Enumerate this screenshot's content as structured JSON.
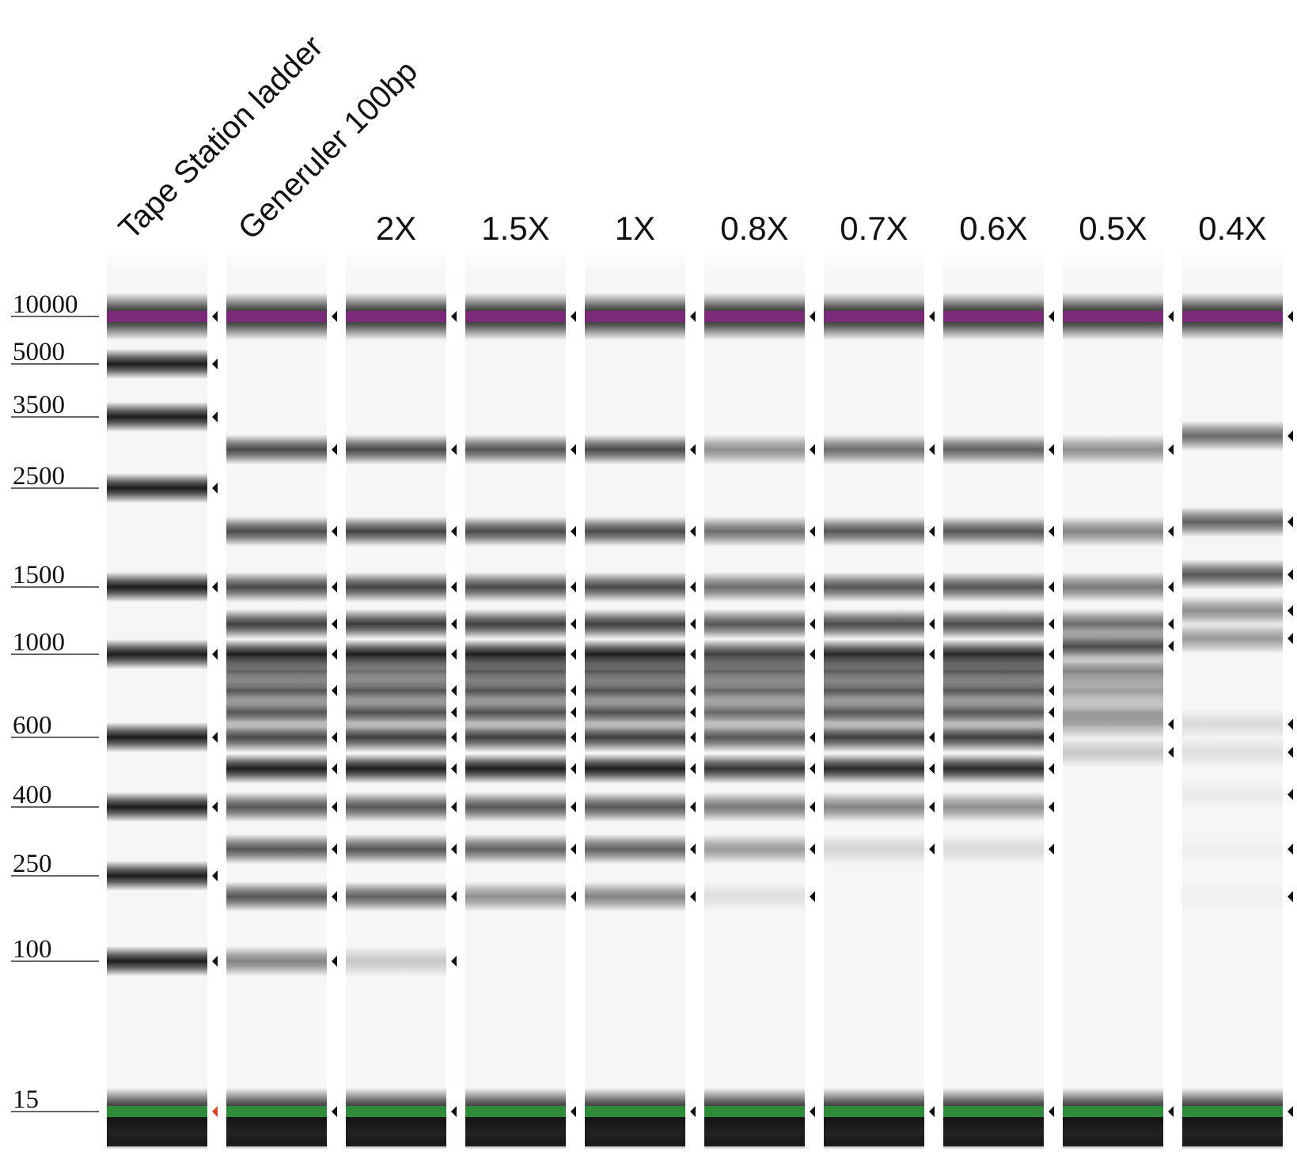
{
  "figure": {
    "size_marker_labels": [
      "10000",
      "5000",
      "3500",
      "2500",
      "1500",
      "1000",
      "600",
      "400",
      "250",
      "100",
      "15"
    ],
    "lanes": [
      {
        "label": "Tape Station ladder",
        "rotated": true,
        "bands": [
          {
            "bp": 10000,
            "i": 0.95,
            "kind": "upper",
            "mark": true
          },
          {
            "bp": 5000,
            "i": 0.95,
            "mark": true
          },
          {
            "bp": 3500,
            "i": 0.95,
            "mark": true
          },
          {
            "bp": 2500,
            "i": 0.95,
            "mark": true
          },
          {
            "bp": 1500,
            "i": 0.95,
            "mark": true
          },
          {
            "bp": 1000,
            "i": 0.95,
            "mark": true
          },
          {
            "bp": 600,
            "i": 0.95,
            "mark": true
          },
          {
            "bp": 400,
            "i": 0.95,
            "mark": true
          },
          {
            "bp": 250,
            "i": 0.95,
            "mark": true
          },
          {
            "bp": 100,
            "i": 0.95,
            "mark": true
          },
          {
            "bp": 15,
            "i": 0.95,
            "kind": "lower",
            "mark": true
          }
        ]
      },
      {
        "label": "Generuler 100bp",
        "rotated": true,
        "bands": [
          {
            "bp": 10000,
            "i": 0.95,
            "kind": "upper",
            "mark": true
          },
          {
            "bp": 3000,
            "i": 0.75,
            "mark": true
          },
          {
            "bp": 2000,
            "i": 0.75,
            "mark": true
          },
          {
            "bp": 1500,
            "i": 0.75,
            "mark": true
          },
          {
            "bp": 1200,
            "i": 0.8,
            "mark": true
          },
          {
            "bp": 1000,
            "i": 0.95,
            "mark": true
          },
          {
            "bp": 900,
            "i": 0.65,
            "mark": false
          },
          {
            "bp": 800,
            "i": 0.7,
            "mark": true
          },
          {
            "bp": 700,
            "i": 0.7,
            "mark": false
          },
          {
            "bp": 600,
            "i": 0.75,
            "mark": true
          },
          {
            "bp": 500,
            "i": 0.95,
            "mark": true
          },
          {
            "bp": 400,
            "i": 0.7,
            "mark": true
          },
          {
            "bp": 300,
            "i": 0.7,
            "mark": true
          },
          {
            "bp": 200,
            "i": 0.7,
            "mark": true
          },
          {
            "bp": 100,
            "i": 0.5,
            "mark": true
          },
          {
            "bp": 15,
            "i": 0.95,
            "kind": "lower",
            "mark": true
          }
        ]
      },
      {
        "label": "2X",
        "rotated": false,
        "bands": [
          {
            "bp": 10000,
            "i": 0.95,
            "kind": "upper",
            "mark": true
          },
          {
            "bp": 3000,
            "i": 0.75,
            "mark": true
          },
          {
            "bp": 2000,
            "i": 0.78,
            "mark": true
          },
          {
            "bp": 1500,
            "i": 0.78,
            "mark": true
          },
          {
            "bp": 1200,
            "i": 0.82,
            "mark": true
          },
          {
            "bp": 1000,
            "i": 0.95,
            "mark": true
          },
          {
            "bp": 900,
            "i": 0.6,
            "mark": false
          },
          {
            "bp": 800,
            "i": 0.7,
            "mark": true
          },
          {
            "bp": 700,
            "i": 0.72,
            "mark": true
          },
          {
            "bp": 600,
            "i": 0.8,
            "mark": true
          },
          {
            "bp": 500,
            "i": 0.95,
            "mark": true
          },
          {
            "bp": 400,
            "i": 0.7,
            "mark": true
          },
          {
            "bp": 300,
            "i": 0.7,
            "mark": true
          },
          {
            "bp": 200,
            "i": 0.65,
            "mark": true
          },
          {
            "bp": 100,
            "i": 0.2,
            "mark": true
          },
          {
            "bp": 15,
            "i": 0.95,
            "kind": "lower",
            "mark": true
          }
        ]
      },
      {
        "label": "1.5X",
        "rotated": false,
        "bands": [
          {
            "bp": 10000,
            "i": 0.95,
            "kind": "upper",
            "mark": true
          },
          {
            "bp": 3000,
            "i": 0.7,
            "mark": true
          },
          {
            "bp": 2000,
            "i": 0.75,
            "mark": true
          },
          {
            "bp": 1500,
            "i": 0.75,
            "mark": true
          },
          {
            "bp": 1200,
            "i": 0.8,
            "mark": true
          },
          {
            "bp": 1000,
            "i": 0.95,
            "mark": true
          },
          {
            "bp": 900,
            "i": 0.7,
            "mark": false
          },
          {
            "bp": 800,
            "i": 0.72,
            "mark": true
          },
          {
            "bp": 700,
            "i": 0.72,
            "mark": true
          },
          {
            "bp": 600,
            "i": 0.8,
            "mark": true
          },
          {
            "bp": 500,
            "i": 0.95,
            "mark": true
          },
          {
            "bp": 400,
            "i": 0.7,
            "mark": true
          },
          {
            "bp": 300,
            "i": 0.65,
            "mark": true
          },
          {
            "bp": 200,
            "i": 0.45,
            "mark": true
          },
          {
            "bp": 15,
            "i": 0.95,
            "kind": "lower",
            "mark": true
          }
        ]
      },
      {
        "label": "1X",
        "rotated": false,
        "bands": [
          {
            "bp": 10000,
            "i": 0.95,
            "kind": "upper",
            "mark": true
          },
          {
            "bp": 3000,
            "i": 0.75,
            "mark": true
          },
          {
            "bp": 2000,
            "i": 0.75,
            "mark": true
          },
          {
            "bp": 1500,
            "i": 0.75,
            "mark": true
          },
          {
            "bp": 1200,
            "i": 0.8,
            "mark": true
          },
          {
            "bp": 1000,
            "i": 0.95,
            "mark": true
          },
          {
            "bp": 900,
            "i": 0.7,
            "mark": false
          },
          {
            "bp": 800,
            "i": 0.72,
            "mark": true
          },
          {
            "bp": 700,
            "i": 0.72,
            "mark": true
          },
          {
            "bp": 600,
            "i": 0.8,
            "mark": true
          },
          {
            "bp": 500,
            "i": 0.95,
            "mark": true
          },
          {
            "bp": 400,
            "i": 0.7,
            "mark": true
          },
          {
            "bp": 300,
            "i": 0.65,
            "mark": true
          },
          {
            "bp": 200,
            "i": 0.5,
            "mark": true
          },
          {
            "bp": 15,
            "i": 0.95,
            "kind": "lower",
            "mark": true
          }
        ]
      },
      {
        "label": "0.8X",
        "rotated": false,
        "bands": [
          {
            "bp": 10000,
            "i": 0.95,
            "kind": "upper",
            "mark": true
          },
          {
            "bp": 3000,
            "i": 0.45,
            "mark": true
          },
          {
            "bp": 2000,
            "i": 0.6,
            "mark": true
          },
          {
            "bp": 1500,
            "i": 0.6,
            "mark": true
          },
          {
            "bp": 1200,
            "i": 0.7,
            "mark": true
          },
          {
            "bp": 1000,
            "i": 0.8,
            "mark": true
          },
          {
            "bp": 900,
            "i": 0.65,
            "mark": false
          },
          {
            "bp": 800,
            "i": 0.62,
            "mark": false
          },
          {
            "bp": 700,
            "i": 0.62,
            "mark": false
          },
          {
            "bp": 600,
            "i": 0.7,
            "mark": true
          },
          {
            "bp": 500,
            "i": 0.85,
            "mark": true
          },
          {
            "bp": 400,
            "i": 0.55,
            "mark": true
          },
          {
            "bp": 300,
            "i": 0.4,
            "mark": true
          },
          {
            "bp": 200,
            "i": 0.1,
            "mark": true
          },
          {
            "bp": 15,
            "i": 0.95,
            "kind": "lower",
            "mark": true
          }
        ]
      },
      {
        "label": "0.7X",
        "rotated": false,
        "bands": [
          {
            "bp": 10000,
            "i": 0.95,
            "kind": "upper",
            "mark": true
          },
          {
            "bp": 3000,
            "i": 0.6,
            "mark": true
          },
          {
            "bp": 2000,
            "i": 0.7,
            "mark": true
          },
          {
            "bp": 1500,
            "i": 0.7,
            "mark": true
          },
          {
            "bp": 1200,
            "i": 0.75,
            "mark": true
          },
          {
            "bp": 1000,
            "i": 0.9,
            "mark": true
          },
          {
            "bp": 900,
            "i": 0.68,
            "mark": false
          },
          {
            "bp": 800,
            "i": 0.7,
            "mark": false
          },
          {
            "bp": 700,
            "i": 0.7,
            "mark": false
          },
          {
            "bp": 600,
            "i": 0.8,
            "mark": true
          },
          {
            "bp": 500,
            "i": 0.9,
            "mark": true
          },
          {
            "bp": 400,
            "i": 0.5,
            "mark": true
          },
          {
            "bp": 300,
            "i": 0.15,
            "mark": true
          },
          {
            "bp": 15,
            "i": 0.95,
            "kind": "lower",
            "mark": true
          }
        ]
      },
      {
        "label": "0.6X",
        "rotated": false,
        "bands": [
          {
            "bp": 10000,
            "i": 0.95,
            "kind": "upper",
            "mark": true
          },
          {
            "bp": 3000,
            "i": 0.65,
            "mark": true
          },
          {
            "bp": 2000,
            "i": 0.7,
            "mark": true
          },
          {
            "bp": 1500,
            "i": 0.7,
            "mark": true
          },
          {
            "bp": 1200,
            "i": 0.75,
            "mark": true
          },
          {
            "bp": 1000,
            "i": 0.9,
            "mark": true
          },
          {
            "bp": 900,
            "i": 0.7,
            "mark": false
          },
          {
            "bp": 800,
            "i": 0.7,
            "mark": true
          },
          {
            "bp": 700,
            "i": 0.7,
            "mark": true
          },
          {
            "bp": 600,
            "i": 0.8,
            "mark": true
          },
          {
            "bp": 500,
            "i": 0.9,
            "mark": true
          },
          {
            "bp": 400,
            "i": 0.45,
            "mark": true
          },
          {
            "bp": 300,
            "i": 0.12,
            "mark": true
          },
          {
            "bp": 15,
            "i": 0.95,
            "kind": "lower",
            "mark": true
          }
        ]
      },
      {
        "label": "0.5X",
        "rotated": false,
        "bands": [
          {
            "bp": 10000,
            "i": 0.95,
            "kind": "upper",
            "mark": true
          },
          {
            "bp": 3000,
            "i": 0.45,
            "mark": true
          },
          {
            "bp": 2000,
            "i": 0.5,
            "mark": true
          },
          {
            "bp": 1500,
            "i": 0.55,
            "mark": true
          },
          {
            "bp": 1200,
            "i": 0.6,
            "mark": true
          },
          {
            "bp": 1050,
            "i": 0.75,
            "mark": true
          },
          {
            "bp": 900,
            "i": 0.5,
            "mark": false
          },
          {
            "bp": 800,
            "i": 0.4,
            "mark": false
          },
          {
            "bp": 700,
            "i": 0.35,
            "mark": false
          },
          {
            "bp": 650,
            "i": 0.3,
            "mark": true
          },
          {
            "bp": 550,
            "i": 0.2,
            "mark": true
          },
          {
            "bp": 15,
            "i": 0.95,
            "kind": "lower",
            "mark": true
          }
        ]
      },
      {
        "label": "0.4X",
        "rotated": false,
        "bands": [
          {
            "bp": 10000,
            "i": 0.95,
            "kind": "upper",
            "mark": true
          },
          {
            "bp": 3200,
            "i": 0.6,
            "mark": true
          },
          {
            "bp": 2100,
            "i": 0.65,
            "mark": true
          },
          {
            "bp": 1600,
            "i": 0.7,
            "mark": true
          },
          {
            "bp": 1300,
            "i": 0.45,
            "mark": true
          },
          {
            "bp": 1100,
            "i": 0.4,
            "mark": true
          },
          {
            "bp": 650,
            "i": 0.12,
            "mark": true
          },
          {
            "bp": 550,
            "i": 0.1,
            "mark": true
          },
          {
            "bp": 430,
            "i": 0.05,
            "mark": true
          },
          {
            "bp": 300,
            "i": 0.03,
            "mark": true
          },
          {
            "bp": 200,
            "i": 0.03,
            "mark": true
          },
          {
            "bp": 15,
            "i": 0.95,
            "kind": "lower",
            "mark": true
          }
        ]
      }
    ],
    "colors": {
      "upper_marker": "#7a2a78",
      "lower_marker": "#2e8b3a",
      "band": "#111111",
      "arrow": "#111111",
      "arrow_highlight": "#e0401f",
      "lane_background": "#f6f6f6"
    },
    "icons": [
      "peak-arrow-icon"
    ]
  }
}
